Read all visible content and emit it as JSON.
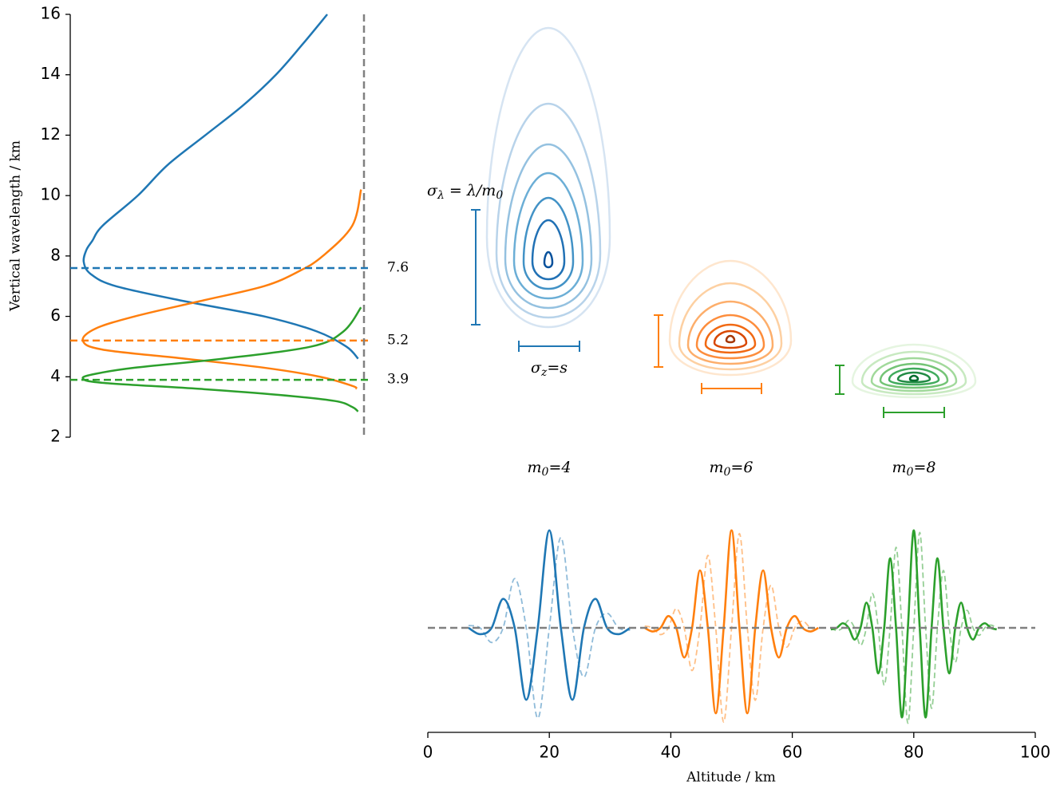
{
  "chart_data": [
    {
      "type": "line",
      "ylabel": "Vertical wavelength / km",
      "ylim": [
        2,
        16
      ],
      "yticks": [
        2,
        4,
        6,
        8,
        10,
        12,
        14,
        16
      ],
      "xlim": [
        0,
        1
      ],
      "vline": 1,
      "series": [
        {
          "color": "#1f77b4",
          "x": [
            0.98,
            0.94,
            0.84,
            0.66,
            0.39,
            0.155,
            0.07,
            0.046,
            0.055,
            0.075,
            0.11,
            0.23,
            0.33,
            0.46,
            0.59,
            0.7,
            0.79,
            0.875
          ],
          "y": [
            4.6,
            5,
            5.5,
            6,
            6.5,
            7,
            7.4,
            7.8,
            8.2,
            8.5,
            9,
            10,
            11,
            12,
            13,
            14,
            15,
            16
          ]
        },
        {
          "color": "#ff7f0e",
          "x": [
            0.975,
            0.96,
            0.85,
            0.66,
            0.39,
            0.11,
            0.043,
            0.087,
            0.22,
            0.44,
            0.66,
            0.78,
            0.86,
            0.96,
            0.99
          ],
          "y": [
            3.6,
            3.7,
            4,
            4.3,
            4.6,
            4.9,
            5.2,
            5.6,
            6,
            6.5,
            7,
            7.5,
            8,
            9,
            10.2
          ]
        },
        {
          "color": "#2ca02c",
          "x": [
            0.98,
            0.96,
            0.9,
            0.71,
            0.44,
            0.11,
            0.043,
            0.087,
            0.22,
            0.52,
            0.82,
            0.93,
            0.99
          ],
          "y": [
            2.85,
            3,
            3.2,
            3.4,
            3.6,
            3.8,
            3.95,
            4.1,
            4.3,
            4.6,
            5,
            5.5,
            6.3
          ]
        }
      ],
      "hlines": [
        {
          "y": 7.6,
          "color": "#1f77b4"
        },
        {
          "y": 5.2,
          "color": "#ff7f0e"
        },
        {
          "y": 3.9,
          "color": "#2ca02c"
        }
      ]
    },
    {
      "type": "contour",
      "labels": [
        {
          "parts": [
            "σ",
            "λ",
            " = λ/m",
            "0"
          ]
        },
        {
          "parts": [
            "σ",
            "z",
            "=s"
          ]
        },
        {
          "parts": [
            "m",
            "0",
            "=4"
          ]
        },
        {
          "parts": [
            "m",
            "0",
            "=6"
          ]
        },
        {
          "parts": [
            "m",
            "0",
            "=8"
          ]
        }
      ]
    },
    {
      "type": "line",
      "xlabel": "Altitude / km",
      "xlim": [
        0,
        100
      ],
      "xticks": [
        0,
        20,
        40,
        60,
        80,
        100
      ],
      "ylim": [
        -1.08,
        1.08
      ],
      "hline": 0,
      "series": [
        {
          "color": "#1f77b4",
          "linestyle": "dashed",
          "alpha": 0.5,
          "x": [
            6.7,
            8.6,
            10.5,
            12.4,
            14.3,
            16.2,
            18.1,
            20,
            21.9,
            23.8,
            25.7,
            27.6,
            29.5,
            31.4,
            33.3
          ],
          "values": [
            0.024,
            0,
            -0.15,
            0,
            0.505,
            0,
            -0.927,
            0,
            0.927,
            0,
            -0.505,
            0,
            0.15,
            0,
            -0.024
          ]
        },
        {
          "color": "#1f77b4",
          "linestyle": "solid",
          "alpha": 1,
          "x": [
            6.7,
            8.6,
            10.5,
            12.4,
            14.3,
            16.2,
            18.1,
            20,
            21.9,
            23.8,
            25.7,
            27.6,
            29.5,
            31.4,
            33.3
          ],
          "values": [
            0,
            -0.065,
            0,
            0.297,
            0,
            -0.738,
            0,
            1,
            0,
            -0.738,
            0,
            0.297,
            0,
            -0.065,
            0
          ]
        },
        {
          "color": "#ff7f0e",
          "linestyle": "dashed",
          "alpha": 0.5,
          "x": [
            35.7,
            37.0,
            38.3,
            39.6,
            40.9,
            42.2,
            43.5,
            44.8,
            46.1,
            47.4,
            48.7,
            50,
            51.3,
            52.6,
            53.9,
            55.2,
            56.5,
            57.8,
            59.1,
            60.4,
            61.7,
            63.0,
            64.3
          ],
          "values": [
            0.018,
            0,
            -0.069,
            0,
            0.198,
            0,
            -0.438,
            0,
            0.743,
            0,
            -0.967,
            0,
            0.967,
            0,
            -0.743,
            0,
            0.438,
            0,
            -0.198,
            0,
            0.069,
            0,
            -0.018
          ]
        },
        {
          "color": "#ff7f0e",
          "linestyle": "solid",
          "alpha": 1,
          "x": [
            35.7,
            37.0,
            38.3,
            39.6,
            40.9,
            42.2,
            43.5,
            44.8,
            46.1,
            47.4,
            48.7,
            50,
            51.3,
            52.6,
            53.9,
            55.2,
            56.5,
            57.8,
            59.1,
            60.4,
            61.7,
            63.0,
            64.3
          ],
          "values": [
            0,
            -0.037,
            0,
            0.121,
            0,
            -0.304,
            0,
            0.589,
            0,
            -0.876,
            0,
            1,
            0,
            -0.876,
            0,
            0.589,
            0,
            -0.304,
            0,
            0.121,
            0,
            -0.037,
            0
          ]
        },
        {
          "color": "#2ca02c",
          "linestyle": "dashed",
          "alpha": 0.5,
          "x": [
            66.35,
            67.33,
            68.3,
            69.28,
            70.25,
            71.23,
            72.2,
            73.18,
            74.15,
            75.13,
            76.1,
            77.08,
            78.05,
            79.03,
            80,
            80.98,
            81.95,
            82.93,
            83.9,
            84.88,
            85.85,
            86.83,
            87.8,
            88.78,
            89.75,
            90.73,
            91.7,
            92.68,
            93.65
          ],
          "values": [
            0,
            -0.028,
            0,
            0.077,
            0,
            -0.18,
            0,
            0.354,
            0,
            -0.589,
            0,
            0.826,
            0,
            -0.979,
            0,
            0.979,
            0,
            -0.826,
            0,
            0.589,
            0,
            -0.354,
            0,
            0.18,
            0,
            -0.077,
            0,
            0.028,
            0
          ]
        },
        {
          "color": "#2ca02c",
          "linestyle": "solid",
          "alpha": 1,
          "x": [
            66.35,
            67.33,
            68.3,
            69.28,
            70.25,
            71.23,
            72.2,
            73.18,
            74.15,
            75.13,
            76.1,
            77.08,
            78.05,
            79.03,
            80,
            80.98,
            81.95,
            82.93,
            83.9,
            84.88,
            85.85,
            86.83,
            87.8,
            88.78,
            89.75,
            90.73,
            91.7,
            92.68,
            93.65
          ],
          "values": [
            -0.016,
            0,
            0.047,
            0,
            -0.12,
            0,
            0.258,
            0,
            -0.467,
            0,
            0.713,
            0,
            -0.919,
            0,
            1,
            0,
            -0.919,
            0,
            0.713,
            0,
            -0.467,
            0,
            0.258,
            0,
            -0.12,
            0,
            0.047,
            0,
            -0.016
          ]
        }
      ]
    }
  ]
}
